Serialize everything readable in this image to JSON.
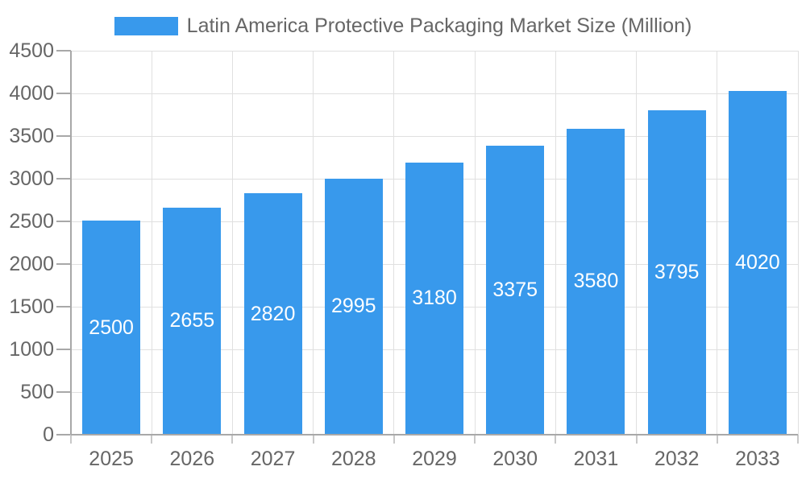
{
  "chart_data": {
    "type": "bar",
    "title": "Latin America Protective Packaging Market Size (Million)",
    "legend_position": "top",
    "categories": [
      "2025",
      "2026",
      "2027",
      "2028",
      "2029",
      "2030",
      "2031",
      "2032",
      "2033"
    ],
    "series": [
      {
        "name": "Latin America Protective Packaging Market Size (Million)",
        "values": [
          2500,
          2655,
          2820,
          2995,
          3180,
          3375,
          3580,
          3795,
          4020
        ]
      }
    ],
    "bar_value_labels": [
      "2500",
      "2655",
      "2820",
      "2995",
      "3180",
      "3375",
      "3580",
      "3795",
      "4020"
    ],
    "xlabel": "",
    "ylabel": "",
    "ylim": [
      0,
      4500
    ],
    "y_ticks": [
      0,
      500,
      1000,
      1500,
      2000,
      2500,
      3000,
      3500,
      4000,
      4500
    ],
    "grid": true,
    "colors": {
      "bar": "#3899EC",
      "bar_label": "#FFFFFF",
      "axis_text": "#666666",
      "legend_text": "#666666",
      "grid_line": "#E0E0E0",
      "axis_line": "#A8A8A8",
      "y_tick": "#A8A8A8",
      "x_tick": "#C8C8C8",
      "background": "#FFFFFF"
    }
  }
}
